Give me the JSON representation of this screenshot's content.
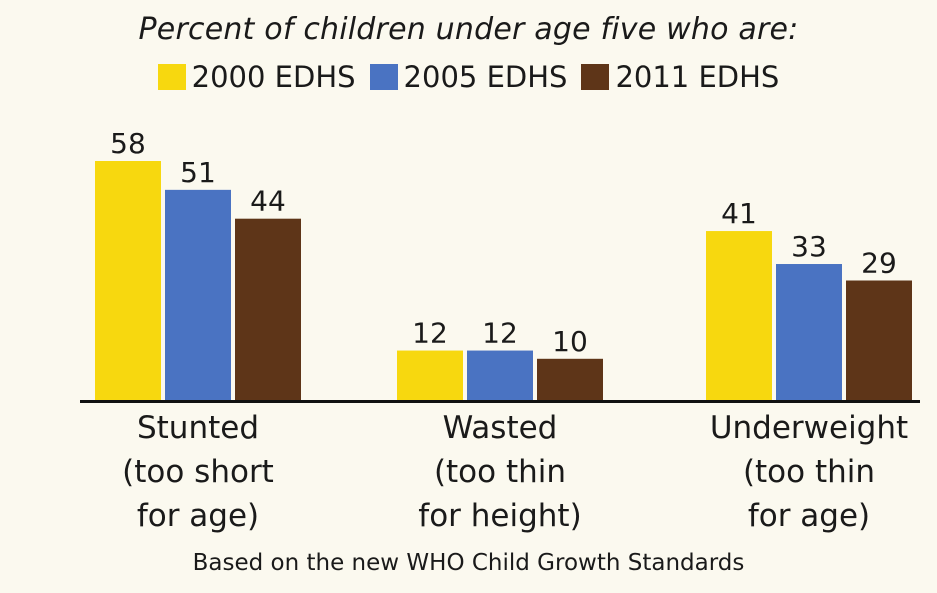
{
  "chart_data": {
    "type": "bar",
    "title": "Percent of children under age five who are:",
    "categories": [
      [
        "Stunted",
        "(too short",
        "for age)"
      ],
      [
        "Wasted",
        "(too thin",
        "for height)"
      ],
      [
        "Underweight",
        "(too thin",
        "for age)"
      ]
    ],
    "series": [
      {
        "name": "2000 EDHS",
        "color": "#f7d80f",
        "values": [
          58,
          12,
          41
        ]
      },
      {
        "name": "2005 EDHS",
        "color": "#4a73c2",
        "values": [
          51,
          12,
          33
        ]
      },
      {
        "name": "2011 EDHS",
        "color": "#5e3518",
        "values": [
          44,
          10,
          29
        ]
      }
    ],
    "ylim": [
      0,
      58
    ],
    "legend": "top",
    "grid": false,
    "footnote": "Based on the new WHO Child Growth Standards"
  }
}
